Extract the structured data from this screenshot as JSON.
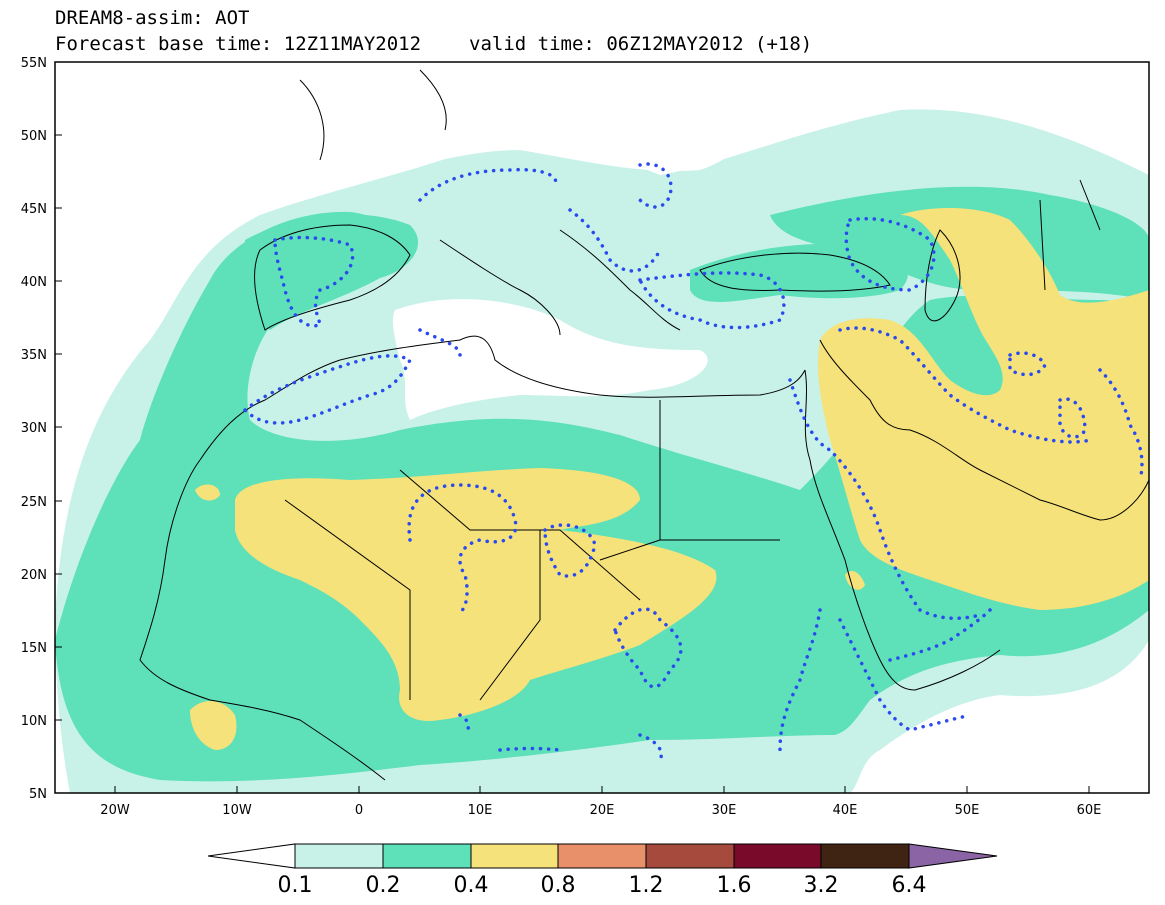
{
  "header": {
    "line1": "DREAM8-assim: AOT",
    "base_time": "Forecast base time: 12Z11MAY2012",
    "valid_time": "valid time: 06Z12MAY2012 (+18)"
  },
  "axes": {
    "lon_labels": [
      "20W",
      "10W",
      "0",
      "10E",
      "20E",
      "30E",
      "40E",
      "50E",
      "60E"
    ],
    "lat_labels": [
      "55N",
      "50N",
      "45N",
      "40N",
      "35N",
      "30N",
      "25N",
      "20N",
      "15N",
      "10N",
      "5N"
    ]
  },
  "colorbar": {
    "labels": [
      "0.1",
      "0.2",
      "0.4",
      "0.8",
      "1.2",
      "1.6",
      "3.2",
      "6.4"
    ],
    "colors": [
      "#ffffff",
      "#c8f2e8",
      "#5ee0b9",
      "#f5e27a",
      "#e8906a",
      "#a54a3c",
      "#7a0a2a",
      "#3f2414",
      "#8a64a4"
    ]
  },
  "map": {
    "region": "North Africa, Europe, Middle East",
    "fill_colors": {
      "low": "#c8f2e8",
      "mid": "#5ee0b9",
      "high": "#f5e27a"
    },
    "contour_color": "#2a4af0"
  }
}
